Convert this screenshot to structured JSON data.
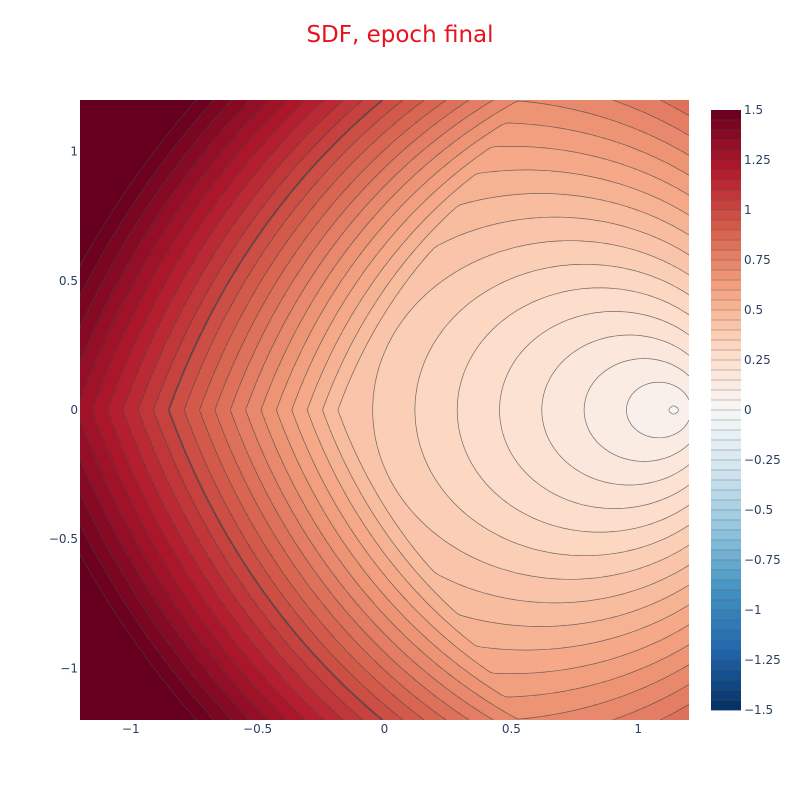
{
  "chart_data": {
    "type": "contour",
    "title": "SDF, epoch final",
    "title_color": "#e8121c",
    "xlim": [
      -1.2,
      1.2
    ],
    "ylim": [
      -1.2,
      1.2
    ],
    "x_ticks": [
      -1,
      -0.5,
      0,
      0.5,
      1
    ],
    "x_tick_labels": [
      "−1",
      "−0.5",
      "0",
      "0.5",
      "1"
    ],
    "y_ticks": [
      1,
      0.5,
      0,
      -0.5,
      -1
    ],
    "y_tick_labels": [
      "1",
      "0.5",
      "0",
      "−0.5",
      "−1"
    ],
    "colorbar": {
      "range": [
        -1.5,
        1.5
      ],
      "ticks": [
        1.5,
        1.25,
        1,
        0.75,
        0.5,
        0.25,
        0,
        -0.25,
        -0.5,
        -0.75,
        -1,
        -1.25,
        -1.5
      ],
      "tick_labels": [
        "1.5",
        "1.25",
        "1",
        "0.75",
        "0.5",
        "0.25",
        "0",
        "−0.25",
        "−0.5",
        "−0.75",
        "−1",
        "−1.25",
        "−1.5"
      ],
      "colorscale": "RdBu (reversed)"
    },
    "zero_contour": "bold black",
    "colors": {
      "negative_dark": "#053061",
      "negative_mid": "#4393c3",
      "neutral": "#f7f7f7",
      "positive_mid": "#f4a582",
      "positive_dark": "#67001f",
      "line": "#444444",
      "zero_line": "#2a2a2a"
    }
  }
}
